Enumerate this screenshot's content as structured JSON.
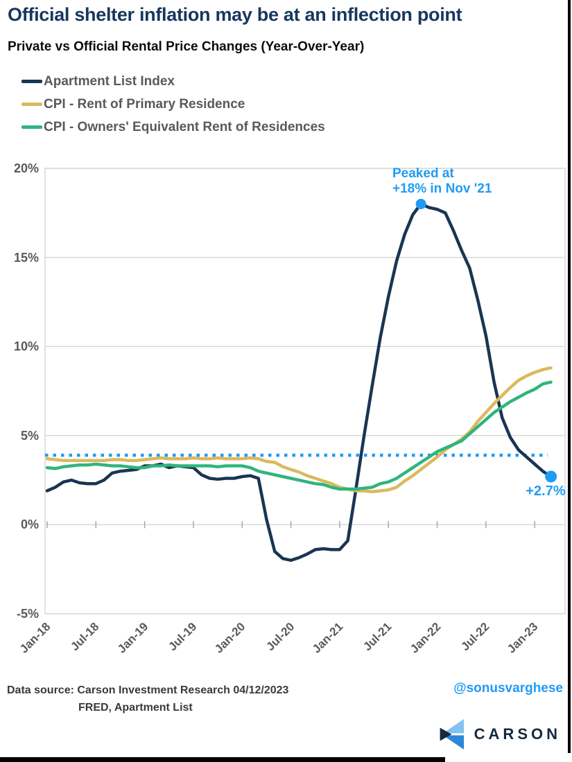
{
  "page": {
    "title": "Official shelter inflation may be at an inflection point",
    "subtitle": "Private vs Official Rental Price Changes (Year-Over-Year)"
  },
  "legend": {
    "items": [
      {
        "label": "Apartment List Index",
        "color": "#1A3553"
      },
      {
        "label": "CPI - Rent of Primary Residence",
        "color": "#DBB95C"
      },
      {
        "label": "CPI - Owners' Equivalent Rent of Residences",
        "color": "#2FB57C"
      }
    ]
  },
  "chart_data": {
    "type": "line",
    "title": "Private vs Official Rental Price Changes (Year-Over-Year)",
    "frequency": "monthly",
    "x_start": "Jan-18",
    "x_end": "Mar-23",
    "ylim": [
      -5,
      20
    ],
    "grid": "horizontal",
    "legend_position": "top-left",
    "y_ticks": [
      {
        "label": "20%",
        "value": 20
      },
      {
        "label": "15%",
        "value": 15
      },
      {
        "label": "10%",
        "value": 10
      },
      {
        "label": "5%",
        "value": 5
      },
      {
        "label": "0%",
        "value": 0
      },
      {
        "label": "-5%",
        "value": -5
      }
    ],
    "x_ticks": [
      {
        "label": "Jan-18",
        "month_index": 0
      },
      {
        "label": "Jul-18",
        "month_index": 6
      },
      {
        "label": "Jan-19",
        "month_index": 12
      },
      {
        "label": "Jul-19",
        "month_index": 18
      },
      {
        "label": "Jan-20",
        "month_index": 24
      },
      {
        "label": "Jul-20",
        "month_index": 30
      },
      {
        "label": "Jan-21",
        "month_index": 36
      },
      {
        "label": "Jul-21",
        "month_index": 42
      },
      {
        "label": "Jan-22",
        "month_index": 48
      },
      {
        "label": "Jul-22",
        "month_index": 54
      },
      {
        "label": "Jan-23",
        "month_index": 60
      }
    ],
    "series": [
      {
        "name": "Apartment List Index",
        "color": "#1A3553",
        "values": [
          1.9,
          2.1,
          2.4,
          2.5,
          2.35,
          2.3,
          2.3,
          2.5,
          2.9,
          3.0,
          3.05,
          3.1,
          3.3,
          3.3,
          3.4,
          3.2,
          3.3,
          3.25,
          3.2,
          2.8,
          2.6,
          2.55,
          2.6,
          2.6,
          2.7,
          2.75,
          2.6,
          0.3,
          -1.5,
          -1.9,
          -2.0,
          -1.85,
          -1.65,
          -1.4,
          -1.35,
          -1.4,
          -1.4,
          -0.9,
          2.0,
          5.0,
          7.8,
          10.5,
          12.8,
          14.8,
          16.3,
          17.4,
          18.0,
          17.8,
          17.7,
          17.5,
          16.5,
          15.4,
          14.4,
          12.6,
          10.6,
          8.0,
          6.0,
          4.9,
          4.2,
          3.8,
          3.4,
          3.0,
          2.7
        ]
      },
      {
        "name": "CPI - Rent of Primary Residence",
        "color": "#DBB95C",
        "values": [
          3.7,
          3.65,
          3.6,
          3.6,
          3.6,
          3.6,
          3.6,
          3.6,
          3.65,
          3.65,
          3.6,
          3.6,
          3.65,
          3.7,
          3.75,
          3.7,
          3.7,
          3.7,
          3.75,
          3.7,
          3.7,
          3.75,
          3.7,
          3.7,
          3.7,
          3.75,
          3.7,
          3.55,
          3.5,
          3.25,
          3.1,
          2.95,
          2.75,
          2.6,
          2.45,
          2.3,
          2.1,
          2.0,
          1.9,
          1.9,
          1.85,
          1.9,
          1.95,
          2.1,
          2.45,
          2.75,
          3.1,
          3.45,
          3.8,
          4.2,
          4.5,
          4.8,
          5.2,
          5.8,
          6.3,
          6.8,
          7.25,
          7.7,
          8.1,
          8.35,
          8.55,
          8.7,
          8.8
        ]
      },
      {
        "name": "CPI - Owners' Equivalent Rent of Residences",
        "color": "#2FB57C",
        "values": [
          3.2,
          3.15,
          3.25,
          3.3,
          3.35,
          3.35,
          3.4,
          3.35,
          3.3,
          3.3,
          3.25,
          3.2,
          3.2,
          3.3,
          3.3,
          3.35,
          3.3,
          3.3,
          3.3,
          3.3,
          3.3,
          3.25,
          3.3,
          3.3,
          3.3,
          3.2,
          3.0,
          2.9,
          2.8,
          2.7,
          2.6,
          2.5,
          2.4,
          2.3,
          2.25,
          2.1,
          2.0,
          2.0,
          2.0,
          2.05,
          2.1,
          2.3,
          2.4,
          2.6,
          2.9,
          3.2,
          3.5,
          3.8,
          4.1,
          4.3,
          4.5,
          4.7,
          5.1,
          5.5,
          5.9,
          6.3,
          6.6,
          6.9,
          7.15,
          7.4,
          7.6,
          7.9,
          8.0
        ]
      }
    ],
    "average_line": {
      "value": 3.9,
      "color": "#1E9CF4",
      "style": "dotted"
    },
    "annotations": [
      {
        "id": "peak",
        "line1": "Peaked at",
        "line2": "+18% in Nov '21",
        "month_index": 46,
        "value": 18,
        "color": "#1E9CF4"
      },
      {
        "id": "latest",
        "label": "+2.7%",
        "month_index": 62,
        "value": 2.7,
        "color": "#1E9CF4"
      }
    ]
  },
  "annotation_text": {
    "peak_line1": "Peaked at",
    "peak_line2": "+18% in Nov '21",
    "latest_label": "+2.7%"
  },
  "footer": {
    "source_prefix": "Data source:",
    "source_name": "Carson Investment Research",
    "date": "04/12/2023",
    "source_line2": "FRED, Apartment List",
    "handle": "@sonusvarghese",
    "brand": "CARSON"
  },
  "colors": {
    "accent_blue": "#1E9CF4",
    "title_navy": "#17375E",
    "axis_gray": "#595959",
    "grid_gray": "#D9D9D9",
    "logo_light_blue": "#82C3F0",
    "logo_mid_blue": "#2B87D8",
    "logo_navy": "#15293F"
  }
}
